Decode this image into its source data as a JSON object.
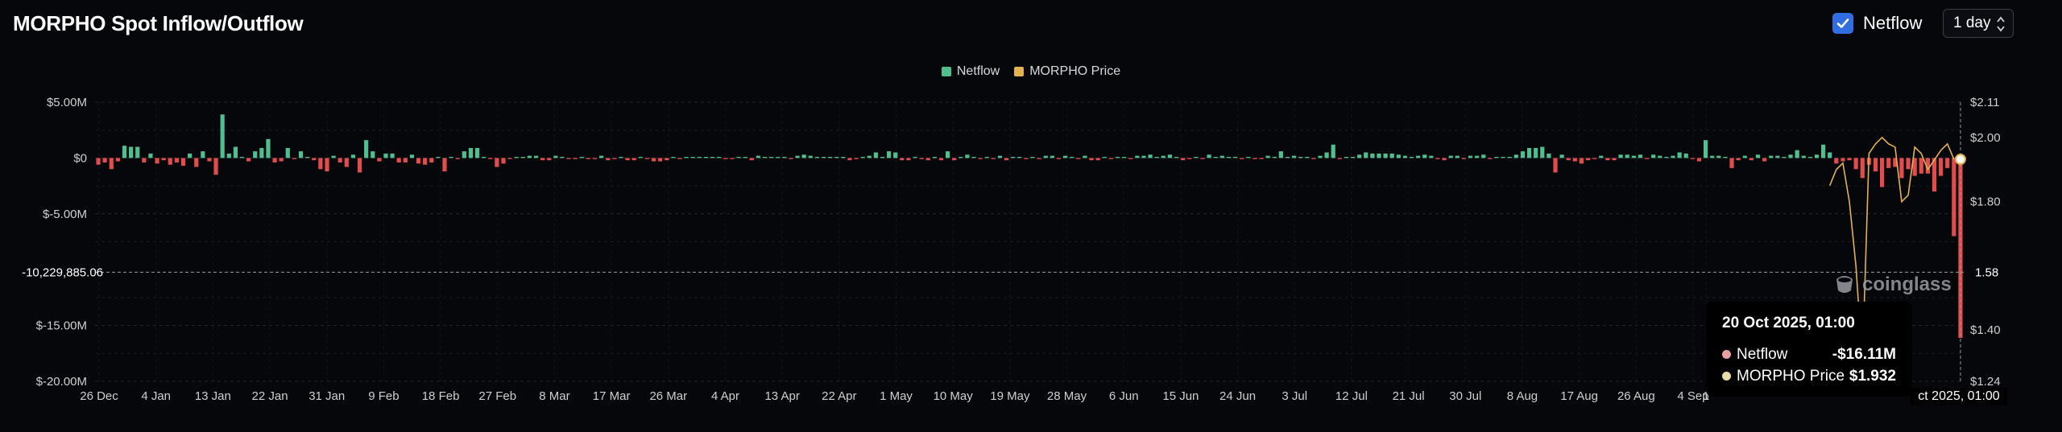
{
  "header": {
    "title": "MORPHO Spot Inflow/Outflow",
    "toggle_label": "Netflow",
    "toggle_checked": true,
    "interval_value": "1 day"
  },
  "legend": [
    {
      "label": "Netflow",
      "color": "#4fbf8f"
    },
    {
      "label": "MORPHO Price",
      "color": "#e3b24f"
    }
  ],
  "colors": {
    "positive": "#4fbf8f",
    "negative": "#e24c4c",
    "price": "#e3b24f",
    "background": "#06070b",
    "grid": "#23262e"
  },
  "watermark": "coinglass",
  "crosshair_label": "-10,229,885.06",
  "crosshair_right_label": "1.58",
  "tooltip": {
    "date": "20 Oct 2025, 01:00",
    "rows": [
      {
        "name": "Netflow",
        "value": "-$16.11M",
        "color": "#e9a1a1"
      },
      {
        "name": "MORPHO Price",
        "value": "$1.932",
        "color": "#e8dca6"
      }
    ]
  },
  "time_badge": "ct 2025, 01:00",
  "chart_data": {
    "type": "bar",
    "title": "MORPHO Spot Inflow/Outflow",
    "grid": true,
    "legend_position": "top-center",
    "y_left": {
      "ticks": [
        "$5.00M",
        "$0",
        "$-5.00M",
        "$-15.00M",
        "$-20.00M"
      ],
      "tick_values": [
        5,
        0,
        -5,
        -15,
        -20
      ],
      "range": [
        -20,
        5
      ]
    },
    "y_right": {
      "ticks": [
        "$2.11",
        "$2.00",
        "$1.80",
        "$1.40",
        "$1.24"
      ],
      "tick_values": [
        2.11,
        2.0,
        1.8,
        1.4,
        1.24
      ],
      "range": [
        1.24,
        2.11
      ]
    },
    "x_ticks": [
      "26 Dec",
      "4 Jan",
      "13 Jan",
      "22 Jan",
      "31 Jan",
      "9 Feb",
      "18 Feb",
      "27 Feb",
      "8 Mar",
      "17 Mar",
      "26 Mar",
      "4 Apr",
      "13 Apr",
      "22 Apr",
      "1 May",
      "10 May",
      "19 May",
      "28 May",
      "6 Jun",
      "15 Jun",
      "24 Jun",
      "3 Jul",
      "12 Jul",
      "21 Jul",
      "30 Jul",
      "8 Aug",
      "17 Aug",
      "26 Aug",
      "4 Sep",
      "1"
    ],
    "series": [
      {
        "name": "Netflow",
        "unit": "USD millions",
        "start_date": "2024-12-26",
        "values": [
          -0.6,
          -0.4,
          -1.0,
          -0.3,
          1.1,
          1.0,
          1.0,
          -0.4,
          0.4,
          -0.5,
          -0.2,
          -0.6,
          -0.4,
          -0.7,
          0.4,
          -0.8,
          0.6,
          -0.3,
          -1.5,
          3.9,
          0.4,
          1.0,
          0.1,
          -0.3,
          0.6,
          0.9,
          1.7,
          -0.4,
          -0.3,
          0.9,
          -0.1,
          0.6,
          0.1,
          -0.2,
          -1.0,
          -1.2,
          0.2,
          -0.4,
          -0.8,
          0.3,
          -1.3,
          1.6,
          0.6,
          -0.3,
          0.4,
          0.4,
          -0.4,
          -0.4,
          0.3,
          -0.5,
          -0.6,
          -0.4,
          0.1,
          -1.2,
          0.1,
          -0.1,
          0.6,
          0.9,
          0.9,
          0.1,
          -0.1,
          -0.8,
          -0.5,
          -0.1,
          0.1,
          0.1,
          0.2,
          0.2,
          -0.2,
          -0.2,
          0.2,
          0.1,
          -0.1,
          -0.1,
          0.1,
          -0.1,
          -0.1,
          0.2,
          -0.2,
          -0.1,
          0.1,
          -0.2,
          -0.2,
          0.1,
          -0.1,
          -0.3,
          -0.3,
          -0.2,
          0.1,
          -0.1,
          0.1,
          0.1,
          0.1,
          0.1,
          0.1,
          0.1,
          -0.1,
          -0.1,
          0.1,
          0.1,
          -0.2,
          0.2,
          0.1,
          0.1,
          0.1,
          0.1,
          -0.1,
          0.2,
          0.3,
          0.2,
          0.1,
          0.1,
          0.1,
          0.1,
          0.1,
          -0.2,
          -0.1,
          0.1,
          0.2,
          0.5,
          0.1,
          0.6,
          0.5,
          -0.2,
          -0.2,
          0.1,
          -0.1,
          -0.2,
          0.1,
          -0.2,
          0.6,
          -0.2,
          0.1,
          0.3,
          0.1,
          -0.1,
          0.1,
          -0.1,
          0.2,
          -0.2,
          0.1,
          0.1,
          -0.1,
          0.1,
          -0.1,
          0.2,
          0.2,
          -0.1,
          0.2,
          0.1,
          -0.1,
          0.2,
          -0.2,
          -0.2,
          0.1,
          -0.1,
          0.1,
          0.1,
          -0.1,
          0.2,
          0.2,
          0.3,
          0.1,
          0.2,
          0.3,
          0.1,
          -0.2,
          -0.1,
          0.1,
          -0.1,
          0.3,
          0.1,
          0.2,
          0.1,
          0.1,
          -0.1,
          0.1,
          -0.1,
          -0.1,
          0.2,
          0.1,
          0.6,
          0.1,
          0.2,
          0.1,
          0.1,
          -0.1,
          0.2,
          0.5,
          1.2,
          -0.1,
          0.1,
          0.1,
          0.3,
          0.5,
          0.4,
          0.4,
          0.4,
          0.4,
          0.3,
          0.2,
          0.1,
          0.2,
          0.3,
          0.2,
          -0.1,
          -0.2,
          0.2,
          0.2,
          -0.1,
          0.2,
          0.2,
          0.3,
          -0.1,
          0.1,
          0.1,
          0.1,
          0.3,
          0.6,
          0.9,
          0.9,
          1.0,
          0.4,
          -1.3,
          0.3,
          -0.2,
          -0.3,
          -0.5,
          -0.2,
          -0.1,
          0.2,
          -0.2,
          -0.2,
          0.3,
          0.3,
          0.2,
          0.3,
          -0.1,
          0.3,
          0.2,
          0.1,
          0.2,
          0.5,
          0.4,
          -0.1,
          -0.3,
          1.6,
          0.2,
          0.2,
          0.1,
          -0.9,
          -0.2,
          0.2,
          -0.2,
          0.3,
          -0.3,
          0.2,
          0.2,
          0.1,
          0.3,
          0.7,
          0.2,
          0.1,
          0.3,
          1.2,
          0.5,
          -0.5,
          -0.3,
          -0.2,
          -1.0,
          -1.8,
          -0.6,
          -1.2,
          -2.6,
          -0.9,
          -0.8,
          -1.8,
          -1.0,
          -1.6,
          -1.4,
          -1.4,
          -3.0,
          -1.6,
          -0.9,
          -7.0,
          -16.11
        ]
      },
      {
        "name": "MORPHO Price",
        "unit": "USD",
        "points": [
          [
            265,
            1.85
          ],
          [
            266,
            1.9
          ],
          [
            267,
            1.92
          ],
          [
            268,
            1.8
          ],
          [
            269,
            1.6
          ],
          [
            270,
            1.3
          ],
          [
            271,
            1.95
          ],
          [
            272,
            1.98
          ],
          [
            273,
            2.0
          ],
          [
            274,
            1.98
          ],
          [
            275,
            1.97
          ],
          [
            276,
            1.8
          ],
          [
            277,
            1.82
          ],
          [
            278,
            1.97
          ],
          [
            279,
            1.95
          ],
          [
            280,
            1.9
          ],
          [
            281,
            1.93
          ],
          [
            282,
            1.96
          ],
          [
            283,
            1.98
          ],
          [
            284,
            1.932
          ]
        ]
      }
    ]
  }
}
